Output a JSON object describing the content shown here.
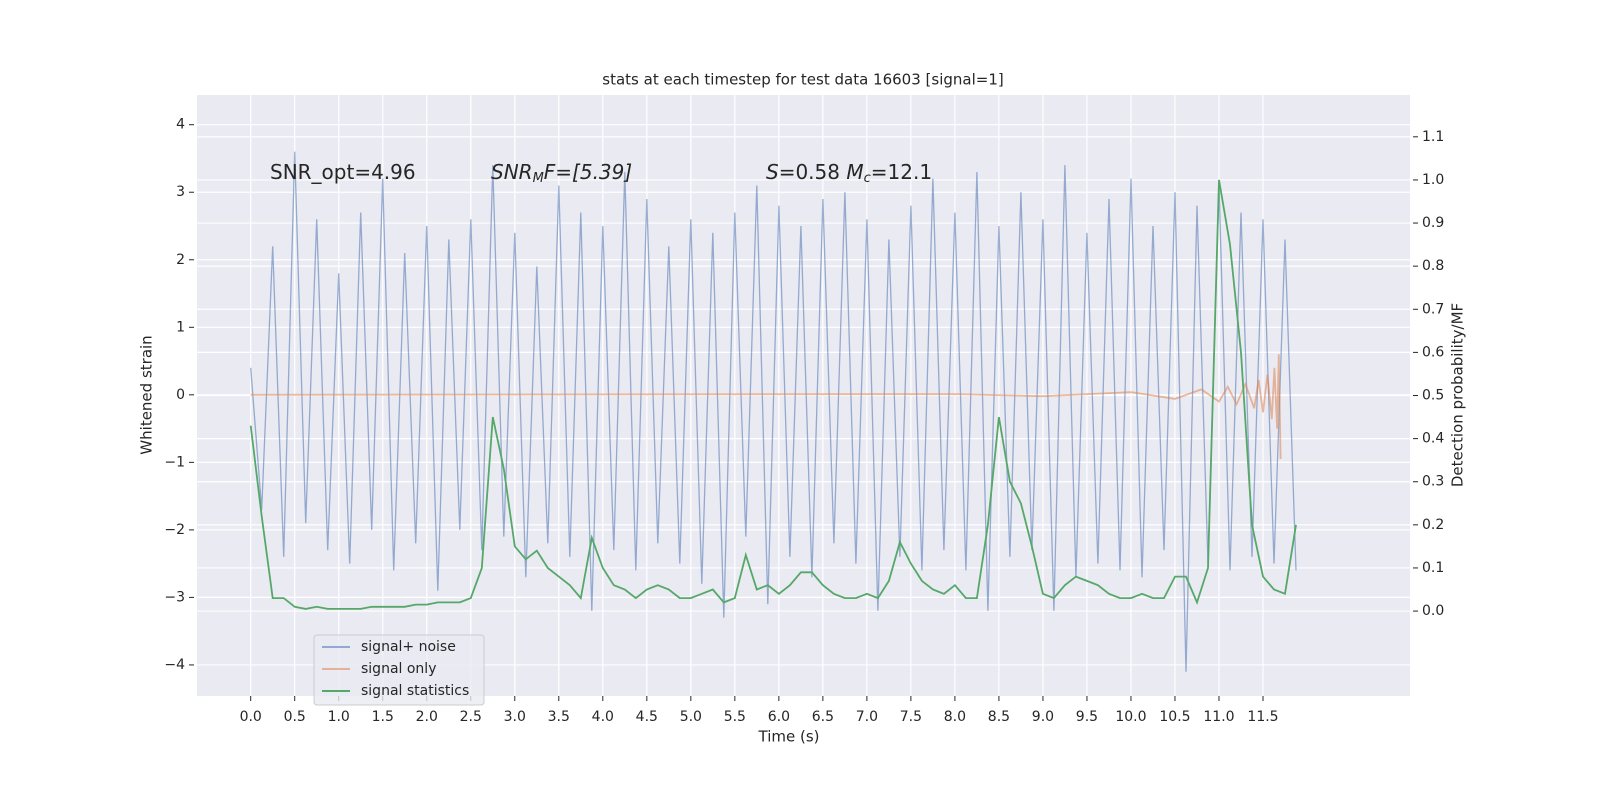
{
  "chart_data": {
    "type": "line",
    "title": "stats at each timestep for test data 16603 [signal=1]",
    "xlabel": "Time (s)",
    "ylabel": "Whitened strain",
    "y2label": "Detection probability/MF",
    "xlim": [
      -0.61,
      13.17
    ],
    "ylim": [
      -4.46,
      4.44
    ],
    "y2lim": [
      -0.197,
      1.197
    ],
    "xticks": [
      {
        "value": 0,
        "label": "0.0"
      },
      0.5,
      {
        "value": 1,
        "label": "1.0"
      },
      1.5,
      {
        "value": 2,
        "label": "2.0"
      },
      2.5,
      {
        "value": 3,
        "label": "3.0"
      },
      3.5,
      {
        "value": 4,
        "label": "4.0"
      },
      4.5,
      {
        "value": 5,
        "label": "5.0"
      },
      5.5,
      {
        "value": 6,
        "label": "6.0"
      },
      6.5,
      {
        "value": 7,
        "label": "7.0"
      },
      7.5,
      {
        "value": 8,
        "label": "8.0"
      },
      8.5,
      {
        "value": 9,
        "label": "9.0"
      },
      9.5,
      {
        "value": 10,
        "label": "10.0"
      },
      10.5,
      {
        "value": 11,
        "label": "11.0"
      },
      11.5
    ],
    "yticks": [
      {
        "value": -4,
        "label": "−4"
      },
      {
        "value": -3,
        "label": "−3"
      },
      {
        "value": -2,
        "label": "−2"
      },
      {
        "value": -1,
        "label": "−1"
      },
      0,
      1,
      2,
      3,
      4
    ],
    "y2ticks": [
      {
        "value": 0,
        "label": "0.0"
      },
      0.1,
      0.2,
      0.3,
      0.4,
      0.5,
      0.6,
      0.7,
      0.8,
      0.9,
      {
        "value": 1,
        "label": "1.0"
      },
      1.1
    ],
    "grid": true,
    "legend": "lower left",
    "x": [
      0,
      0.125,
      0.25,
      0.375,
      0.5,
      0.625,
      0.75,
      0.875,
      1,
      1.125,
      1.25,
      1.375,
      1.5,
      1.625,
      1.75,
      1.875,
      2,
      2.125,
      2.25,
      2.375,
      2.5,
      2.625,
      2.75,
      2.875,
      3,
      3.125,
      3.25,
      3.375,
      3.5,
      3.625,
      3.75,
      3.875,
      4,
      4.125,
      4.25,
      4.375,
      4.5,
      4.625,
      4.75,
      4.875,
      5,
      5.125,
      5.25,
      5.375,
      5.5,
      5.625,
      5.75,
      5.875,
      6,
      6.125,
      6.25,
      6.375,
      6.5,
      6.625,
      6.75,
      6.875,
      7,
      7.125,
      7.25,
      7.375,
      7.5,
      7.625,
      7.75,
      7.875,
      8,
      8.125,
      8.25,
      8.375,
      8.5,
      8.625,
      8.75,
      8.875,
      9,
      9.125,
      9.25,
      9.375,
      9.5,
      9.625,
      9.75,
      9.875,
      10,
      10.125,
      10.25,
      10.375,
      10.5,
      10.625,
      10.75,
      10.875,
      11,
      11.125,
      11.25,
      11.375,
      11.5,
      11.625,
      11.75,
      11.875
    ],
    "series": [
      {
        "name": "signal+ noise",
        "color": "#4c72b0",
        "values": [
          0.4,
          -1.7,
          2.2,
          -2.4,
          3.6,
          -1.9,
          2.6,
          -2.3,
          1.8,
          -2.5,
          2.7,
          -2.0,
          3.2,
          -2.6,
          2.1,
          -2.2,
          2.5,
          -2.9,
          2.3,
          -2.0,
          2.6,
          -2.3,
          3.4,
          -2.1,
          2.4,
          -2.7,
          1.9,
          -2.2,
          3.1,
          -2.4,
          2.7,
          -3.2,
          2.5,
          -2.3,
          3.3,
          -2.6,
          2.9,
          -2.2,
          2.2,
          -2.5,
          2.6,
          -2.8,
          2.4,
          -3.3,
          2.7,
          -2.1,
          3.1,
          -3.1,
          2.8,
          -2.4,
          2.5,
          -2.7,
          2.9,
          -2.2,
          3.0,
          -2.5,
          2.6,
          -3.2,
          2.3,
          -2.4,
          2.8,
          -2.6,
          3.2,
          -2.3,
          2.7,
          -2.6,
          3.3,
          -3.2,
          2.5,
          -2.4,
          3.0,
          -2.3,
          2.6,
          -3.2,
          3.4,
          -2.7,
          2.4,
          -2.5,
          2.9,
          -2.6,
          3.2,
          -2.7,
          2.5,
          -2.3,
          3.0,
          -4.1,
          2.8,
          -2.5,
          3.1,
          -2.6,
          2.7,
          -2.4,
          2.6,
          -2.5,
          2.3,
          -2.6
        ]
      },
      {
        "name": "signal only",
        "color": "#dd8452",
        "x": [
          0,
          8,
          9,
          10,
          10.5,
          10.8,
          11.0,
          11.1,
          11.2,
          11.3,
          11.4,
          11.45,
          11.5,
          11.55,
          11.6,
          11.63,
          11.66,
          11.68,
          11.7
        ],
        "values": [
          0,
          0.01,
          -0.02,
          0.04,
          -0.06,
          0.08,
          -0.1,
          0.12,
          -0.14,
          0.16,
          -0.2,
          0.22,
          -0.26,
          0.3,
          -0.36,
          0.4,
          -0.5,
          0.6,
          -0.95
        ]
      },
      {
        "name": "signal statistics",
        "color": "#55a868",
        "axis": "y2",
        "values": [
          0.43,
          0.22,
          0.03,
          0.03,
          0.01,
          0.005,
          0.01,
          0.005,
          0.005,
          0.005,
          0.005,
          0.01,
          0.01,
          0.01,
          0.01,
          0.015,
          0.015,
          0.02,
          0.02,
          0.02,
          0.03,
          0.1,
          0.45,
          0.33,
          0.15,
          0.12,
          0.14,
          0.1,
          0.08,
          0.06,
          0.03,
          0.17,
          0.1,
          0.06,
          0.05,
          0.03,
          0.05,
          0.06,
          0.05,
          0.03,
          0.03,
          0.04,
          0.05,
          0.02,
          0.03,
          0.13,
          0.05,
          0.06,
          0.04,
          0.06,
          0.09,
          0.09,
          0.06,
          0.04,
          0.03,
          0.03,
          0.04,
          0.03,
          0.07,
          0.16,
          0.11,
          0.07,
          0.05,
          0.04,
          0.06,
          0.03,
          0.03,
          0.2,
          0.45,
          0.3,
          0.25,
          0.15,
          0.04,
          0.03,
          0.06,
          0.08,
          0.07,
          0.06,
          0.04,
          0.03,
          0.03,
          0.04,
          0.03,
          0.03,
          0.08,
          0.08,
          0.02,
          0.1,
          1.0,
          0.85,
          0.6,
          0.2,
          0.08,
          0.05,
          0.04,
          0.2
        ]
      }
    ],
    "annotations": [
      {
        "parts": [
          "SNR_opt=4.96"
        ]
      },
      {
        "parts": [
          "SNR",
          "M",
          "F=[5.39]"
        ]
      },
      {
        "parts": [
          "S",
          "=0.58   ",
          "M",
          "c",
          "=12.1"
        ]
      }
    ]
  }
}
